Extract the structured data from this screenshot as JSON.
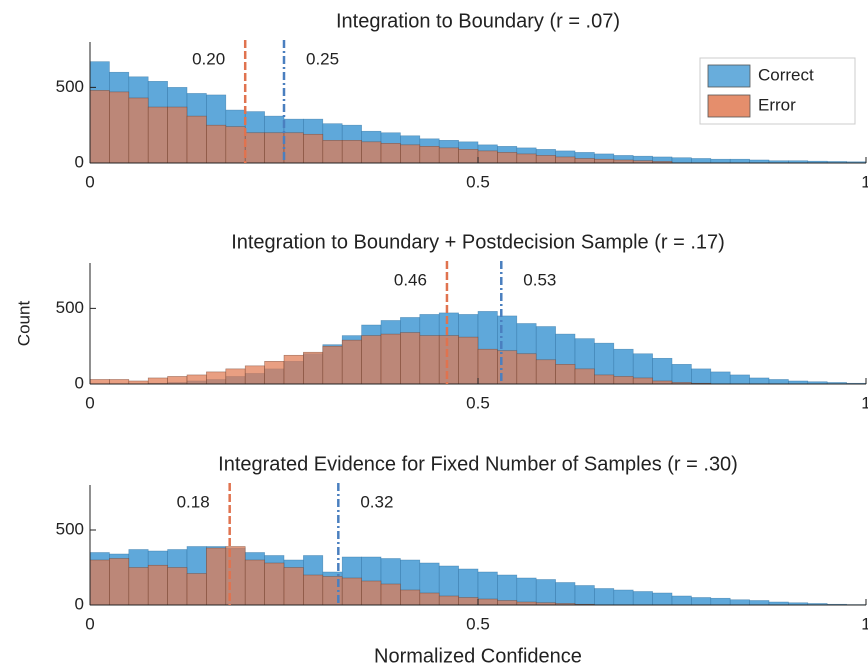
{
  "chart_data": [
    {
      "type": "histogram",
      "title": "Integration to Boundary (r = .07)",
      "bins": [
        0,
        0.025,
        0.05,
        0.075,
        0.1,
        0.125,
        0.15,
        0.175,
        0.2,
        0.225,
        0.25,
        0.275,
        0.3,
        0.325,
        0.35,
        0.375,
        0.4,
        0.425,
        0.45,
        0.475,
        0.5,
        0.525,
        0.55,
        0.575,
        0.6,
        0.625,
        0.65,
        0.675,
        0.7,
        0.725,
        0.75,
        0.775,
        0.8,
        0.825,
        0.85,
        0.875,
        0.9,
        0.925,
        0.95,
        0.975,
        1
      ],
      "series": [
        {
          "name": "Correct",
          "color": "#4e9fd6",
          "values": [
            670,
            600,
            570,
            540,
            500,
            460,
            450,
            350,
            340,
            310,
            290,
            290,
            260,
            250,
            210,
            200,
            180,
            160,
            150,
            140,
            120,
            110,
            100,
            90,
            80,
            70,
            60,
            50,
            45,
            40,
            35,
            30,
            25,
            25,
            20,
            15,
            15,
            12,
            10,
            8
          ]
        },
        {
          "name": "Error",
          "color": "#e07a52",
          "values": [
            480,
            470,
            430,
            370,
            370,
            310,
            250,
            240,
            200,
            200,
            200,
            190,
            150,
            150,
            140,
            130,
            120,
            110,
            100,
            90,
            80,
            70,
            60,
            50,
            40,
            30,
            25,
            20,
            15,
            10,
            0,
            0,
            0,
            0,
            0,
            0,
            0,
            0,
            0,
            0
          ]
        }
      ],
      "lines": [
        {
          "value": 0.2,
          "label": "0.20",
          "color": "#e0734f"
        },
        {
          "value": 0.25,
          "label": "0.25",
          "color": "#4a7fbf"
        }
      ],
      "legend": "upper right",
      "xlim": [
        0,
        1
      ],
      "xticks": [
        0,
        0.5,
        1
      ],
      "ylim": [
        0,
        800
      ],
      "yticks": [
        0,
        500
      ]
    },
    {
      "type": "histogram",
      "title": "Integration to Boundary + Postdecision Sample (r = .17)",
      "bins": [
        0,
        0.025,
        0.05,
        0.075,
        0.1,
        0.125,
        0.15,
        0.175,
        0.2,
        0.225,
        0.25,
        0.275,
        0.3,
        0.325,
        0.35,
        0.375,
        0.4,
        0.425,
        0.45,
        0.475,
        0.5,
        0.525,
        0.55,
        0.575,
        0.6,
        0.625,
        0.65,
        0.675,
        0.7,
        0.725,
        0.75,
        0.775,
        0.8,
        0.825,
        0.85,
        0.875,
        0.9,
        0.925,
        0.95,
        0.975,
        1
      ],
      "series": [
        {
          "color": "#4e9fd6",
          "values": [
            0,
            0,
            0,
            5,
            10,
            20,
            30,
            50,
            70,
            100,
            150,
            200,
            260,
            320,
            390,
            420,
            440,
            460,
            470,
            460,
            480,
            450,
            400,
            380,
            330,
            300,
            270,
            230,
            200,
            170,
            130,
            100,
            80,
            60,
            40,
            30,
            20,
            15,
            10,
            5
          ]
        },
        {
          "color": "#e07a52",
          "values": [
            30,
            30,
            20,
            40,
            50,
            60,
            80,
            100,
            120,
            150,
            190,
            210,
            250,
            290,
            320,
            330,
            340,
            320,
            320,
            310,
            230,
            220,
            200,
            160,
            130,
            100,
            60,
            50,
            40,
            20,
            10,
            5,
            0,
            0,
            0,
            0,
            0,
            0,
            0,
            0
          ]
        }
      ],
      "lines": [
        {
          "value": 0.46,
          "label": "0.46",
          "color": "#e0734f"
        },
        {
          "value": 0.53,
          "label": "0.53",
          "color": "#4a7fbf"
        }
      ],
      "ylabel": "Count",
      "xlim": [
        0,
        1
      ],
      "xticks": [
        0,
        0.5,
        1
      ],
      "ylim": [
        0,
        800
      ],
      "yticks": [
        0,
        500
      ]
    },
    {
      "type": "histogram",
      "title": "Integrated Evidence for Fixed Number of Samples (r = .30)",
      "bins": [
        0,
        0.025,
        0.05,
        0.075,
        0.1,
        0.125,
        0.15,
        0.175,
        0.2,
        0.225,
        0.25,
        0.275,
        0.3,
        0.325,
        0.35,
        0.375,
        0.4,
        0.425,
        0.45,
        0.475,
        0.5,
        0.525,
        0.55,
        0.575,
        0.6,
        0.625,
        0.65,
        0.675,
        0.7,
        0.725,
        0.75,
        0.775,
        0.8,
        0.825,
        0.85,
        0.875,
        0.9,
        0.925,
        0.95,
        0.975,
        1
      ],
      "series": [
        {
          "color": "#4e9fd6",
          "values": [
            350,
            340,
            370,
            360,
            370,
            390,
            390,
            380,
            350,
            330,
            300,
            330,
            220,
            320,
            320,
            310,
            300,
            280,
            260,
            240,
            220,
            200,
            180,
            170,
            150,
            130,
            110,
            100,
            90,
            80,
            60,
            50,
            45,
            35,
            30,
            20,
            15,
            10,
            5,
            3
          ]
        },
        {
          "color": "#e07a52",
          "values": [
            300,
            310,
            250,
            265,
            250,
            210,
            380,
            390,
            300,
            280,
            250,
            200,
            190,
            180,
            160,
            140,
            100,
            80,
            60,
            50,
            40,
            30,
            20,
            15,
            10,
            5,
            0,
            0,
            0,
            0,
            0,
            0,
            0,
            0,
            0,
            0,
            0,
            0,
            0,
            0
          ]
        }
      ],
      "lines": [
        {
          "value": 0.18,
          "label": "0.18",
          "color": "#e0734f"
        },
        {
          "value": 0.32,
          "label": "0.32",
          "color": "#4a7fbf"
        }
      ],
      "xlabel": "Normalized Confidence",
      "xlim": [
        0,
        1
      ],
      "xticks": [
        0,
        0.5,
        1
      ],
      "ylim": [
        0,
        800
      ],
      "yticks": [
        0,
        500
      ]
    }
  ]
}
